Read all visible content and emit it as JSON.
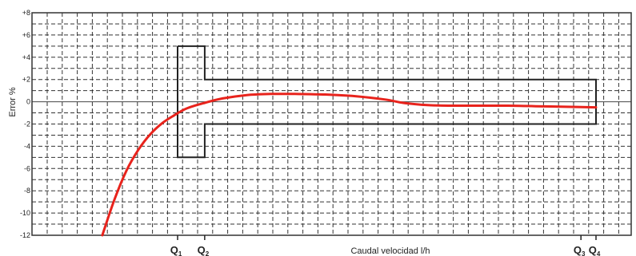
{
  "chart_data": {
    "type": "line",
    "title": "",
    "xlabel": "Caudal velocidad l/h",
    "ylabel": "Error %",
    "y_ticks": [
      8,
      6,
      4,
      2,
      0,
      -2,
      -4,
      -6,
      -8,
      -10,
      -12
    ],
    "y_tick_labels": [
      "+8",
      "+6",
      "+4",
      "+2",
      "0",
      "-2",
      "-4",
      "-6",
      "-8",
      "-10",
      "-12"
    ],
    "ylim": [
      -12,
      8
    ],
    "xlim": [
      0,
      100
    ],
    "grid": true,
    "x_markers": [
      {
        "x": 30.5,
        "label": "Q1"
      },
      {
        "x": 35.0,
        "label": "Q2"
      },
      {
        "x": 97.5,
        "label": "Q3"
      },
      {
        "x": 100.0,
        "label": "Q4"
      }
    ],
    "tolerance_envelope": {
      "color": "#222222",
      "points": [
        [
          30.5,
          5
        ],
        [
          35.0,
          5
        ],
        [
          35.0,
          2
        ],
        [
          100.0,
          2
        ],
        [
          100.0,
          -2
        ],
        [
          35.0,
          -2
        ],
        [
          35.0,
          -5
        ],
        [
          30.5,
          -5
        ],
        [
          30.5,
          5
        ]
      ]
    },
    "series": [
      {
        "color": "#e8231c",
        "x": [
          18.0,
          20.0,
          22.0,
          24.0,
          26.0,
          28.0,
          30.0,
          32.0,
          35.0,
          38.0,
          42.0,
          46.0,
          50.0,
          55.0,
          60.0,
          65.0,
          68.0,
          72.0,
          76.0,
          80.0,
          85.0,
          90.0,
          95.0,
          100.0
        ],
        "y": [
          -12.0,
          -8.8,
          -6.2,
          -4.3,
          -2.9,
          -1.9,
          -1.2,
          -0.6,
          -0.1,
          0.3,
          0.6,
          0.7,
          0.7,
          0.65,
          0.5,
          0.2,
          -0.1,
          -0.3,
          -0.35,
          -0.35,
          -0.35,
          -0.4,
          -0.45,
          -0.5
        ]
      }
    ]
  }
}
